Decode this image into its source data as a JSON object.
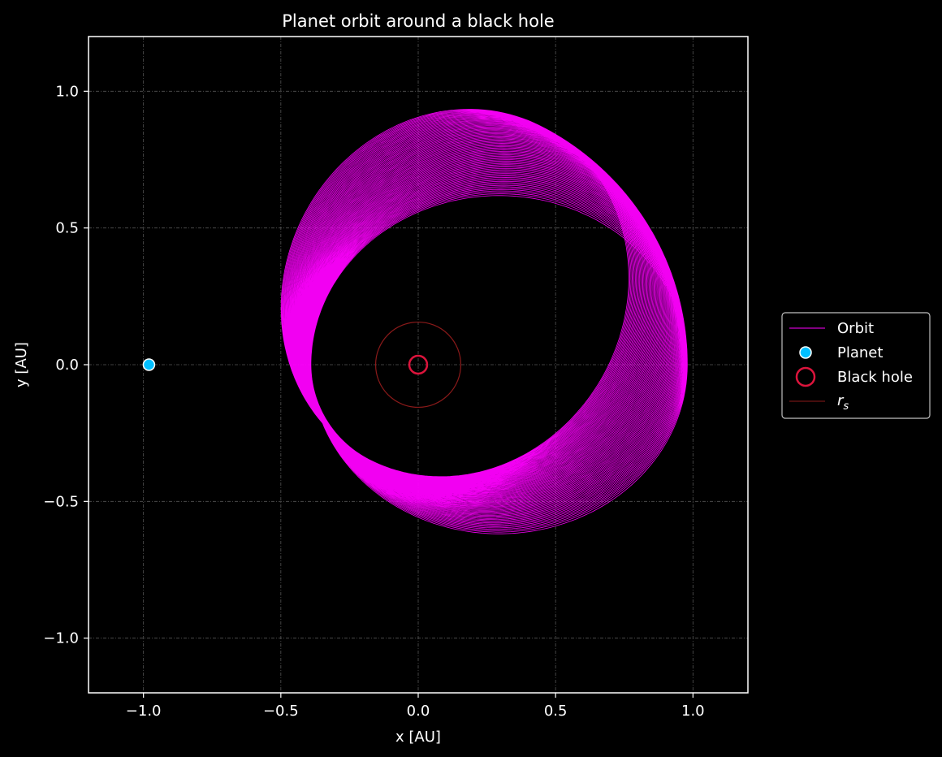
{
  "chart_data": {
    "type": "line",
    "title": "Planet orbit around a black hole",
    "xlabel": "x [AU]",
    "ylabel": "y [AU]",
    "xlim": [
      -1.2,
      1.2
    ],
    "ylim": [
      -1.2,
      1.2
    ],
    "xticks": [
      -1.0,
      -0.5,
      0.0,
      0.5,
      1.0
    ],
    "yticks": [
      -1.0,
      -0.5,
      0.0,
      0.5,
      1.0
    ],
    "xtick_labels": [
      "−1.0",
      "−0.5",
      "0.0",
      "0.5",
      "1.0"
    ],
    "ytick_labels": [
      "−1.0",
      "−0.5",
      "0.0",
      "0.5",
      "1.0"
    ],
    "grid": true,
    "legend_position": "center-right-outside",
    "series": [
      {
        "name": "Orbit",
        "kind": "precessing-ellipse",
        "color": "#ff00ff",
        "semi_major_axis": 0.685,
        "eccentricity": 0.43,
        "start_point": [
          -0.98,
          0.0
        ],
        "precession_start_deg": 180,
        "precession_end_deg": 243,
        "pericenter_density": "dense band at r≈0.39",
        "apocenter_radius": 0.98
      },
      {
        "name": "Planet",
        "kind": "marker",
        "x": -0.98,
        "y": 0.0,
        "color": "#00bfff",
        "edge_color": "#ffffff"
      },
      {
        "name": "Black hole",
        "kind": "marker",
        "x": 0.0,
        "y": 0.0,
        "color": "#dc143c",
        "style": "hollow-circle"
      },
      {
        "name": "$r_s$",
        "kind": "circle",
        "center": [
          0.0,
          0.0
        ],
        "radius": 0.155,
        "color": "#8b1a1a"
      }
    ],
    "legend": [
      {
        "label": "Orbit",
        "symbol": "line",
        "color": "#ff00ff"
      },
      {
        "label": "Planet",
        "symbol": "filled-circle",
        "color": "#00bfff"
      },
      {
        "label": "Black hole",
        "symbol": "hollow-circle",
        "color": "#dc143c"
      },
      {
        "label": "r",
        "subscript": "s",
        "symbol": "line",
        "color": "#8b1a1a"
      }
    ]
  }
}
